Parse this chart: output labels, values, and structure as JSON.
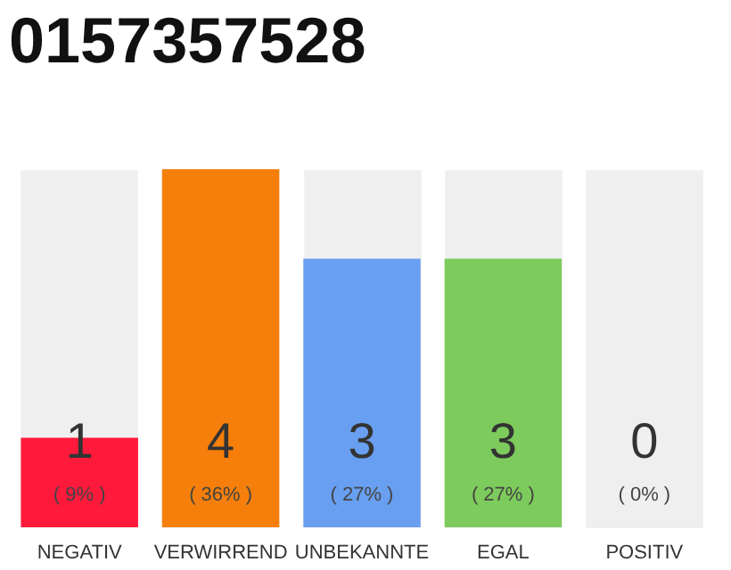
{
  "chart_data": {
    "type": "bar",
    "title": "0157357528",
    "categories": [
      "NEGATIV",
      "VERWIRREND",
      "UNBEKANNTE",
      "EGAL",
      "POSITIV"
    ],
    "values": [
      1,
      4,
      3,
      3,
      0
    ],
    "colors": [
      "#ff1a3c",
      "#f57f0a",
      "#689ff0",
      "#7dcb5c",
      "#d6d6d6"
    ],
    "ylim": [
      0,
      4
    ],
    "tick_labels": "x",
    "grid": "x",
    "data_labels": true,
    "annotations": [
      "( 9% )",
      "( 36% )",
      "( 27% )",
      "( 27% )",
      "( 0% )"
    ]
  }
}
